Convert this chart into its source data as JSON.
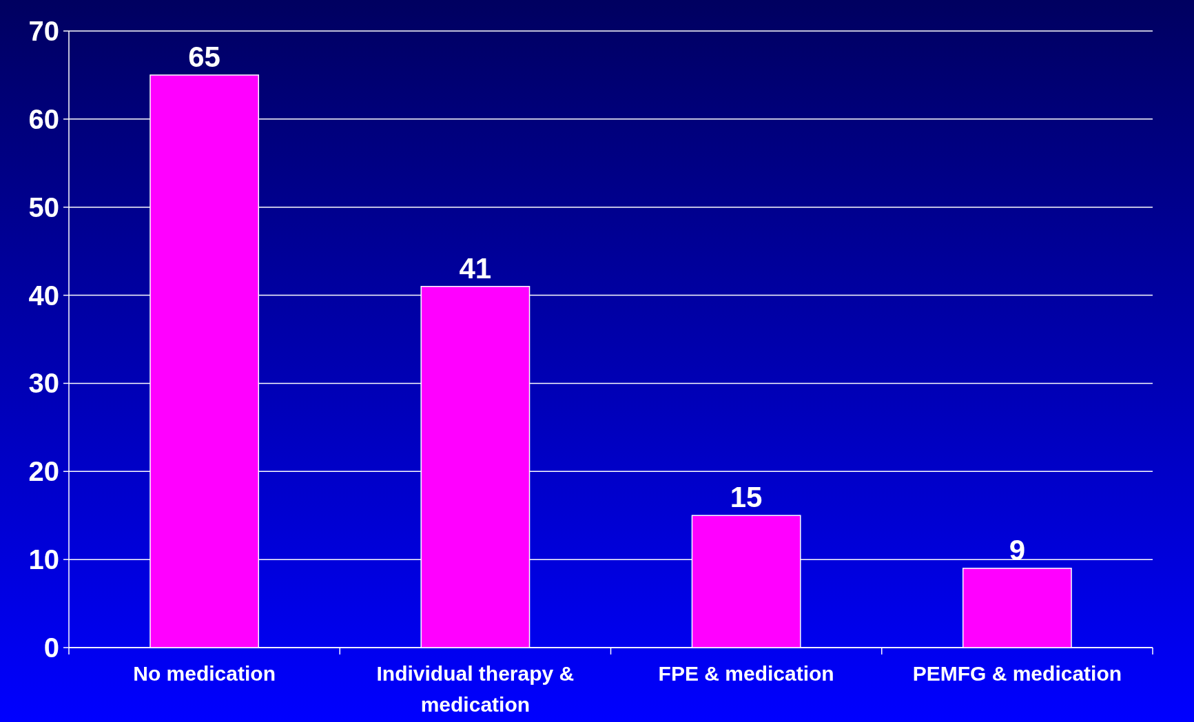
{
  "chart_data": {
    "type": "bar",
    "categories": [
      "No medication",
      "Individual therapy & medication",
      "FPE & medication",
      "PEMFG & medication"
    ],
    "values": [
      65,
      41,
      15,
      9
    ],
    "color": "#ff00ff",
    "ylim": [
      0,
      70
    ],
    "yticks": [
      0,
      10,
      20,
      30,
      40,
      50,
      60,
      70
    ],
    "grid": "y",
    "data_labels": true
  }
}
